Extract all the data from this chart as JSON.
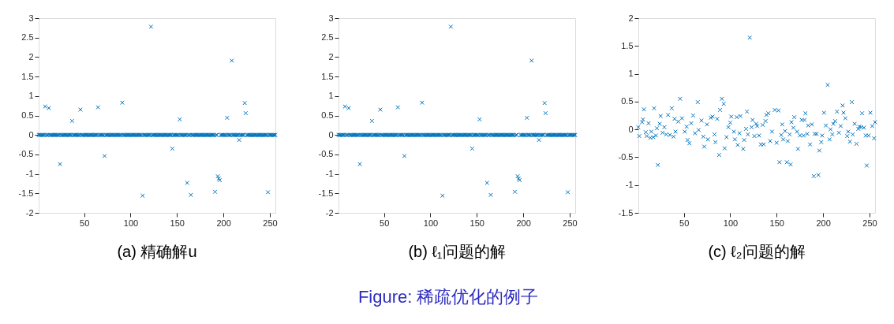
{
  "chart_data": [
    {
      "type": "scatter",
      "title": "(a) 精确解u",
      "xlim": [
        1,
        256
      ],
      "xticks": [
        50,
        100,
        150,
        200,
        250
      ],
      "ylim": [
        -2,
        3
      ],
      "yticks": [
        -2,
        -1.5,
        -1,
        -0.5,
        0,
        0.5,
        1,
        1.5,
        2,
        2.5,
        3
      ],
      "grid": false,
      "legend": false,
      "marker": "cross",
      "series": [
        {
          "color": "#0072bd",
          "x": [
            1,
            2,
            3,
            4,
            5,
            6,
            7,
            8,
            9,
            10,
            11,
            12,
            13,
            14,
            15,
            16,
            17,
            18,
            19,
            20,
            21,
            22,
            23,
            24,
            25,
            26,
            27,
            28,
            29,
            30,
            31,
            32,
            33,
            34,
            35,
            36,
            37,
            38,
            39,
            40,
            41,
            42,
            43,
            44,
            45,
            46,
            47,
            48,
            49,
            50,
            51,
            52,
            53,
            54,
            55,
            56,
            57,
            58,
            59,
            60,
            61,
            62,
            63,
            64,
            65,
            66,
            67,
            68,
            69,
            70,
            71,
            72,
            73,
            74,
            75,
            76,
            77,
            78,
            79,
            80,
            81,
            82,
            83,
            84,
            85,
            86,
            87,
            88,
            89,
            90,
            91,
            92,
            93,
            94,
            95,
            96,
            97,
            98,
            99,
            100,
            101,
            102,
            103,
            104,
            105,
            106,
            107,
            108,
            109,
            110,
            111,
            112,
            113,
            114,
            115,
            116,
            117,
            118,
            119,
            120,
            121,
            122,
            123,
            124,
            125,
            126,
            127,
            128,
            129,
            130,
            131,
            132,
            133,
            134,
            135,
            136,
            137,
            138,
            139,
            140,
            141,
            142,
            143,
            144,
            145,
            146,
            147,
            148,
            149,
            150,
            151,
            152,
            153,
            154,
            155,
            156,
            157,
            158,
            159,
            160,
            161,
            162,
            163,
            164,
            165,
            166,
            167,
            168,
            169,
            170,
            171,
            172,
            173,
            174,
            175,
            176,
            177,
            178,
            179,
            180,
            181,
            182,
            183,
            184,
            185,
            186,
            187,
            188,
            189,
            190,
            191,
            192,
            193,
            194,
            195,
            196,
            197,
            198,
            199,
            200,
            201,
            202,
            203,
            204,
            205,
            206,
            207,
            208,
            209,
            210,
            211,
            212,
            213,
            214,
            215,
            216,
            217,
            218,
            219,
            220,
            221,
            222,
            223,
            224,
            225,
            226,
            227,
            228,
            229,
            230,
            231,
            232,
            233,
            234,
            235,
            236,
            237,
            238,
            239,
            240,
            241,
            242,
            243,
            244,
            245,
            246,
            247,
            248,
            249,
            250,
            251,
            252,
            253,
            254,
            255,
            256
          ],
          "values": [
            0,
            0,
            0,
            0,
            0,
            0,
            0,
            0.73,
            0,
            0,
            0,
            0.69,
            0,
            0,
            0,
            0,
            0,
            0,
            0,
            0,
            0,
            0,
            0,
            -0.75,
            0,
            0,
            0,
            0,
            0,
            0,
            0,
            0,
            0,
            0,
            0,
            0,
            0.36,
            0,
            0,
            0,
            0,
            0,
            0,
            0,
            0,
            0.65,
            0,
            0,
            0,
            0,
            0,
            0,
            0,
            0,
            0,
            0,
            0,
            0,
            0,
            0,
            0,
            0,
            0,
            0,
            0.71,
            0,
            0,
            0,
            0,
            0,
            0,
            -0.54,
            0,
            0,
            0,
            0,
            0,
            0,
            0,
            0,
            0,
            0,
            0,
            0,
            0,
            0,
            0,
            0,
            0,
            0,
            0.83,
            0,
            0,
            0,
            0,
            0,
            0,
            0,
            0,
            0,
            0,
            0,
            0,
            0,
            0,
            0,
            0,
            0,
            0,
            0,
            0,
            0,
            -1.56,
            0,
            0,
            0,
            0,
            0,
            0,
            0,
            0,
            2.78,
            0,
            0,
            0,
            0,
            0,
            0,
            0,
            0,
            0,
            0,
            0,
            0,
            0,
            0,
            0,
            0,
            0,
            0,
            0,
            0,
            0,
            0,
            -0.35,
            0,
            0,
            0,
            0,
            0,
            0,
            0,
            0.4,
            0,
            0,
            0,
            0,
            0,
            0,
            0,
            -1.23,
            0,
            0,
            0,
            -1.54,
            0,
            0,
            0,
            0,
            0,
            0,
            0,
            0,
            0,
            0,
            0,
            0,
            0,
            0,
            0,
            0,
            0,
            0,
            0,
            0,
            0,
            0,
            0,
            0,
            0,
            -1.46,
            0,
            0,
            -1.06,
            -1.12,
            -1.16,
            0,
            0,
            0,
            0,
            0,
            0,
            0,
            0.44,
            0,
            0,
            0,
            0,
            1.91,
            0,
            0,
            0,
            0,
            0,
            0,
            0,
            -0.13,
            0,
            0,
            0,
            0,
            0,
            0.82,
            0.56,
            0,
            0,
            0,
            0,
            0,
            0,
            0,
            0,
            0,
            0,
            0,
            0,
            0,
            0,
            0,
            0,
            0,
            0,
            0,
            0,
            0,
            0,
            0,
            -1.47,
            0,
            0,
            0,
            0,
            0,
            0,
            0,
            0
          ]
        }
      ]
    },
    {
      "type": "scatter",
      "title": "(b) ℓ₁问题的解",
      "annotations": [
        "Figure: 稀疏优化的例子"
      ],
      "xlim": [
        1,
        256
      ],
      "xticks": [
        50,
        100,
        150,
        200,
        250
      ],
      "ylim": [
        -2,
        3
      ],
      "yticks": [
        -2,
        -1.5,
        -1,
        -0.5,
        0,
        0.5,
        1,
        1.5,
        2,
        2.5,
        3
      ],
      "grid": false,
      "legend": false,
      "marker": "cross",
      "series": [
        {
          "color": "#0072bd",
          "x": [
            1,
            2,
            3,
            4,
            5,
            6,
            7,
            8,
            9,
            10,
            11,
            12,
            13,
            14,
            15,
            16,
            17,
            18,
            19,
            20,
            21,
            22,
            23,
            24,
            25,
            26,
            27,
            28,
            29,
            30,
            31,
            32,
            33,
            34,
            35,
            36,
            37,
            38,
            39,
            40,
            41,
            42,
            43,
            44,
            45,
            46,
            47,
            48,
            49,
            50,
            51,
            52,
            53,
            54,
            55,
            56,
            57,
            58,
            59,
            60,
            61,
            62,
            63,
            64,
            65,
            66,
            67,
            68,
            69,
            70,
            71,
            72,
            73,
            74,
            75,
            76,
            77,
            78,
            79,
            80,
            81,
            82,
            83,
            84,
            85,
            86,
            87,
            88,
            89,
            90,
            91,
            92,
            93,
            94,
            95,
            96,
            97,
            98,
            99,
            100,
            101,
            102,
            103,
            104,
            105,
            106,
            107,
            108,
            109,
            110,
            111,
            112,
            113,
            114,
            115,
            116,
            117,
            118,
            119,
            120,
            121,
            122,
            123,
            124,
            125,
            126,
            127,
            128,
            129,
            130,
            131,
            132,
            133,
            134,
            135,
            136,
            137,
            138,
            139,
            140,
            141,
            142,
            143,
            144,
            145,
            146,
            147,
            148,
            149,
            150,
            151,
            152,
            153,
            154,
            155,
            156,
            157,
            158,
            159,
            160,
            161,
            162,
            163,
            164,
            165,
            166,
            167,
            168,
            169,
            170,
            171,
            172,
            173,
            174,
            175,
            176,
            177,
            178,
            179,
            180,
            181,
            182,
            183,
            184,
            185,
            186,
            187,
            188,
            189,
            190,
            191,
            192,
            193,
            194,
            195,
            196,
            197,
            198,
            199,
            200,
            201,
            202,
            203,
            204,
            205,
            206,
            207,
            208,
            209,
            210,
            211,
            212,
            213,
            214,
            215,
            216,
            217,
            218,
            219,
            220,
            221,
            222,
            223,
            224,
            225,
            226,
            227,
            228,
            229,
            230,
            231,
            232,
            233,
            234,
            235,
            236,
            237,
            238,
            239,
            240,
            241,
            242,
            243,
            244,
            245,
            246,
            247,
            248,
            249,
            250,
            251,
            252,
            253,
            254,
            255,
            256
          ],
          "values": [
            0,
            0,
            0,
            0,
            0,
            0,
            0,
            0.73,
            0,
            0,
            0,
            0.69,
            0,
            0,
            0,
            0,
            0,
            0,
            0,
            0,
            0,
            0,
            0,
            -0.75,
            0,
            0,
            0,
            0,
            0,
            0,
            0,
            0,
            0,
            0,
            0,
            0,
            0.36,
            0,
            0,
            0,
            0,
            0,
            0,
            0,
            0,
            0.65,
            0,
            0,
            0,
            0,
            0,
            0,
            0,
            0,
            0,
            0,
            0,
            0,
            0,
            0,
            0,
            0,
            0,
            0,
            0.71,
            0,
            0,
            0,
            0,
            0,
            0,
            -0.54,
            0,
            0,
            0,
            0,
            0,
            0,
            0,
            0,
            0,
            0,
            0,
            0,
            0,
            0,
            0,
            0,
            0,
            0,
            0.83,
            0,
            0,
            0,
            0,
            0,
            0,
            0,
            0,
            0,
            0,
            0,
            0,
            0,
            0,
            0,
            0,
            0,
            0,
            0,
            0,
            0,
            -1.56,
            0,
            0,
            0,
            0,
            0,
            0,
            0,
            0,
            2.78,
            0,
            0,
            0,
            0,
            0,
            0,
            0,
            0,
            0,
            0,
            0,
            0,
            0,
            0,
            0,
            0,
            0,
            0,
            0,
            0,
            0,
            0,
            -0.35,
            0,
            0,
            0,
            0,
            0,
            0,
            0,
            0.4,
            0,
            0,
            0,
            0,
            0,
            0,
            0,
            -1.23,
            0,
            0,
            0,
            -1.54,
            0,
            0,
            0,
            0,
            0,
            0,
            0,
            0,
            0,
            0,
            0,
            0,
            0,
            0,
            0,
            0,
            0,
            0,
            0,
            0,
            0,
            0,
            0,
            0,
            0,
            -1.46,
            0,
            0,
            -1.06,
            -1.12,
            -1.16,
            0,
            0,
            0,
            0,
            0,
            0,
            0,
            0.44,
            0,
            0,
            0,
            0,
            1.91,
            0,
            0,
            0,
            0,
            0,
            0,
            0,
            -0.13,
            0,
            0,
            0,
            0,
            0,
            0.82,
            0.56,
            0,
            0,
            0,
            0,
            0,
            0,
            0,
            0,
            0,
            0,
            0,
            0,
            0,
            0,
            0,
            0,
            0,
            0,
            0,
            0,
            0,
            0,
            0,
            -1.47,
            0,
            0,
            0,
            0,
            0,
            0,
            0,
            0
          ]
        }
      ]
    },
    {
      "type": "scatter",
      "title": "(c) ℓ₂问题的解",
      "xlim": [
        1,
        256
      ],
      "xticks": [
        50,
        100,
        150,
        200,
        250
      ],
      "ylim": [
        -1.5,
        2
      ],
      "yticks": [
        -1.5,
        -1,
        -0.5,
        0,
        0.5,
        1,
        1.5,
        2
      ],
      "grid": false,
      "legend": false,
      "marker": "cross",
      "series": [
        {
          "color": "#0072bd",
          "x": [
            1,
            2,
            5,
            6,
            7,
            9,
            10,
            12,
            14,
            15,
            17,
            18,
            20,
            21,
            22,
            24,
            25,
            27,
            29,
            31,
            33,
            35,
            37,
            39,
            40,
            41,
            44,
            46,
            48,
            51,
            53,
            54,
            56,
            58,
            60,
            62,
            65,
            66,
            69,
            71,
            72,
            75,
            76,
            79,
            81,
            83,
            84,
            86,
            88,
            89,
            91,
            93,
            94,
            96,
            98,
            100,
            101,
            104,
            105,
            107,
            108,
            110,
            111,
            114,
            115,
            117,
            118,
            119,
            121,
            123,
            124,
            126,
            128,
            129,
            131,
            133,
            135,
            136,
            138,
            139,
            141,
            143,
            145,
            148,
            150,
            152,
            153,
            155,
            156,
            157,
            159,
            161,
            162,
            164,
            165,
            166,
            168,
            169,
            172,
            173,
            175,
            177,
            179,
            180,
            181,
            183,
            184,
            186,
            188,
            190,
            191,
            193,
            195,
            196,
            198,
            199,
            201,
            203,
            205,
            207,
            208,
            210,
            211,
            213,
            215,
            217,
            219,
            221,
            222,
            224,
            226,
            227,
            229,
            231,
            232,
            234,
            236,
            238,
            239,
            241,
            242,
            244,
            246,
            247,
            249,
            251,
            253,
            255,
            256
          ],
          "values": [
            0.04,
            -0.12,
            0.13,
            0.18,
            0.36,
            -0.05,
            -0.12,
            0.11,
            -0.15,
            -0.04,
            -0.14,
            0.38,
            -0.11,
            0.02,
            -0.64,
            0.1,
            0.24,
            -0.06,
            0.04,
            -0.09,
            0.26,
            -0.1,
            0.38,
            -0.13,
            0.19,
            -0.04,
            0.14,
            0.55,
            0.2,
            -0.04,
            0.05,
            -0.19,
            -0.25,
            0.11,
            0.25,
            -0.07,
            0.49,
            -0.01,
            0.16,
            -0.13,
            -0.31,
            0.09,
            -0.18,
            0.21,
            0.23,
            -0.09,
            -0.23,
            0.19,
            -0.46,
            0.35,
            0.55,
            0.46,
            -0.34,
            -0.14,
            0.04,
            0.12,
            0.23,
            -0.04,
            -0.18,
            0.22,
            -0.28,
            -0.07,
            0.24,
            -0.35,
            -0.19,
            0.01,
            0.32,
            -0.09,
            1.65,
            0.04,
            0.17,
            -0.12,
            0.1,
            0.06,
            -0.11,
            -0.27,
            0.08,
            -0.27,
            0.15,
            0.26,
            0.29,
            -0.21,
            -0.04,
            0.35,
            -0.24,
            0.34,
            -0.59,
            -0.1,
            0.09,
            -0.18,
            -0.03,
            -0.59,
            -0.21,
            -0.09,
            -0.63,
            0.13,
            0.03,
            0.22,
            -0.04,
            -0.35,
            -0.11,
            0.17,
            -0.11,
            0.17,
            0.29,
            -0.08,
            0.07,
            -0.27,
            0.09,
            -0.84,
            -0.08,
            -0.08,
            -0.82,
            -0.38,
            -0.23,
            -0.11,
            0.3,
            0.07,
            0.8,
            -0.18,
            0.0,
            -0.09,
            0.1,
            0.15,
            0.32,
            -0.06,
            0.06,
            0.43,
            0.3,
            0.2,
            -0.12,
            -0.04,
            -0.22,
            0.49,
            -0.09,
            0.1,
            -0.26,
            0.01,
            0.05,
            0.04,
            0.29,
            0.03,
            -0.11,
            -0.65,
            -0.11,
            0.3,
            0.06,
            -0.16,
            0.13
          ]
        }
      ]
    }
  ]
}
